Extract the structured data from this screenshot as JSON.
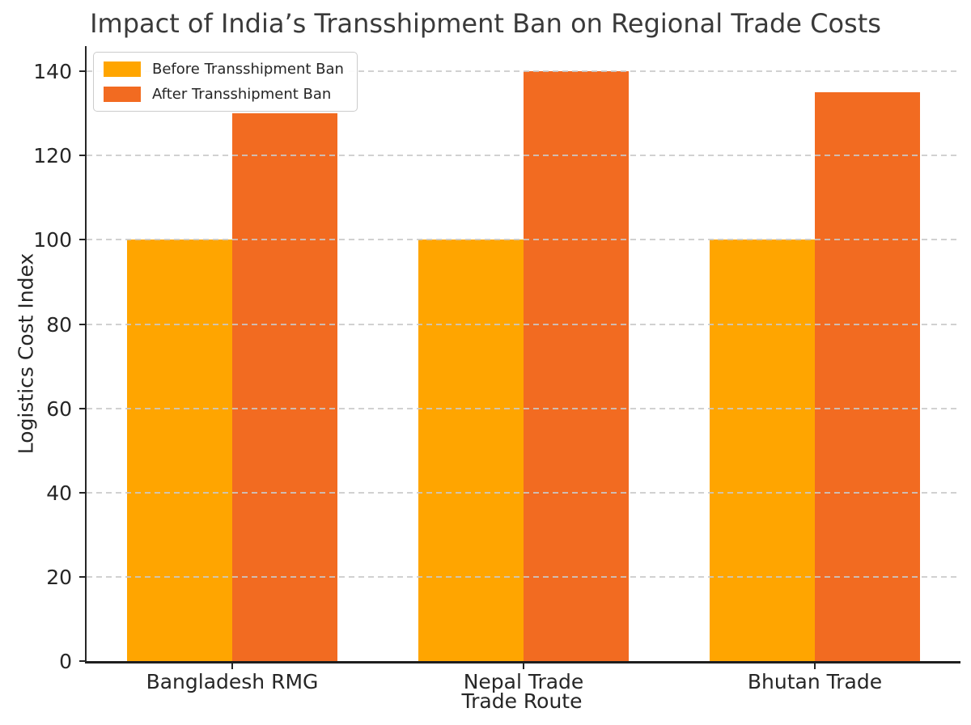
{
  "chart_data": {
    "type": "bar",
    "title": "Impact of India’s Transshipment Ban on Regional Trade Costs",
    "xlabel": "Trade Route",
    "ylabel": "Logistics Cost Index",
    "categories": [
      "Bangladesh RMG",
      "Nepal Trade",
      "Bhutan Trade"
    ],
    "series": [
      {
        "name": "Before Transshipment Ban",
        "color": "#FFA500",
        "values": [
          100,
          100,
          100
        ]
      },
      {
        "name": "After Transshipment Ban",
        "color": "#F26B21",
        "values": [
          130,
          140,
          135
        ]
      }
    ],
    "ylim": [
      0,
      146
    ],
    "yticks": [
      0,
      20,
      40,
      60,
      80,
      100,
      120,
      140
    ],
    "grid": {
      "axis": "y",
      "style": "dashed",
      "color": "#c9c9c9",
      "drawn_over_bars": true
    },
    "legend": {
      "position": "upper left"
    },
    "bar_width_fraction": 0.36,
    "tick_color": "#262626",
    "title_color": "#3a3a3a",
    "background": "#ffffff"
  }
}
